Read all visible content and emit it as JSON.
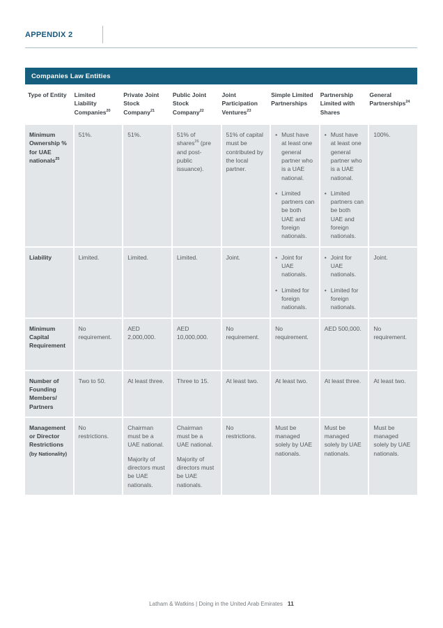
{
  "page": {
    "appendix_title": "APPENDIX 2",
    "footer": {
      "text": "Latham & Watkins | Doing in the United Arab Emirates",
      "page_number": "11"
    }
  },
  "colors": {
    "banner_bg": "#155e7d",
    "appendix_title": "#14587f",
    "rule": "#a9bfcc",
    "cell_bg": "#e2e6e9",
    "cell_text": "#54595e",
    "label_text": "#3b4045"
  },
  "table": {
    "banner_title": "Companies Law Entities",
    "columns": [
      {
        "text": "Type of Entity"
      },
      {
        "text": "Limited Liability Companies",
        "sup": "20"
      },
      {
        "text": "Private Joint Stock Company",
        "sup": "21"
      },
      {
        "text": "Public Joint Stock Company",
        "sup": "22"
      },
      {
        "text": "Joint Participation Ventures",
        "sup": "23"
      },
      {
        "text": "Simple Limited Partnerships"
      },
      {
        "text": "Partnership Limited with Shares"
      },
      {
        "text": "General Partnerships",
        "sup": "24"
      }
    ],
    "rows": [
      {
        "label": {
          "text": "Minimum Ownership % for UAE nationals",
          "sup": "25"
        },
        "cells": [
          "51%.",
          "51%.",
          {
            "segments": [
              {
                "t": "51% of shares"
              },
              {
                "sup": "26"
              },
              {
                "t": " (pre and post-public issuance)."
              }
            ]
          },
          "51% of capital must be contributed by the local partner.",
          {
            "bullets": [
              "Must have at least one general partner who is a UAE national.",
              "Limited partners can be both UAE and foreign nationals."
            ]
          },
          {
            "bullets": [
              "Must have at least one general partner who is a UAE national.",
              "Limited partners can be both UAE and foreign nationals."
            ]
          },
          "100%."
        ]
      },
      {
        "label": {
          "text": "Liability"
        },
        "cells": [
          "Limited.",
          "Limited.",
          "Limited.",
          "Joint.",
          {
            "bullets": [
              "Joint for UAE nationals.",
              "Limited for foreign nationals."
            ]
          },
          {
            "bullets": [
              "Joint for UAE nationals.",
              "Limited for foreign nationals."
            ]
          },
          "Joint."
        ]
      },
      {
        "label": {
          "text": "Minimum Capital Requirement"
        },
        "cells": [
          "No requirement.",
          "AED 2,000,000.",
          "AED 10,000,000.",
          "No requirement.",
          "No requirement.",
          "AED 500,000.",
          "No requirement."
        ]
      },
      {
        "label": {
          "text": "Number of Founding Members/ Partners"
        },
        "cells": [
          "Two to 50.",
          "At least three.",
          "Three to 15.",
          "At least two.",
          "At least two.",
          "At least three.",
          "At least two."
        ]
      },
      {
        "label": {
          "text": "Management or Director Restrictions",
          "sub": "(by Nationality)"
        },
        "cells": [
          "No restrictions.",
          {
            "paragraphs": [
              "Chairman must be a UAE national.",
              "Majority of directors must be UAE nationals."
            ]
          },
          {
            "paragraphs": [
              "Chairman must be a UAE national.",
              "Majority of directors must be UAE nationals."
            ]
          },
          "No restrictions.",
          "Must be managed solely by UAE nationals.",
          "Must be managed solely by UAE nationals.",
          "Must be managed solely by UAE nationals."
        ]
      }
    ],
    "bullet_char": "•"
  }
}
